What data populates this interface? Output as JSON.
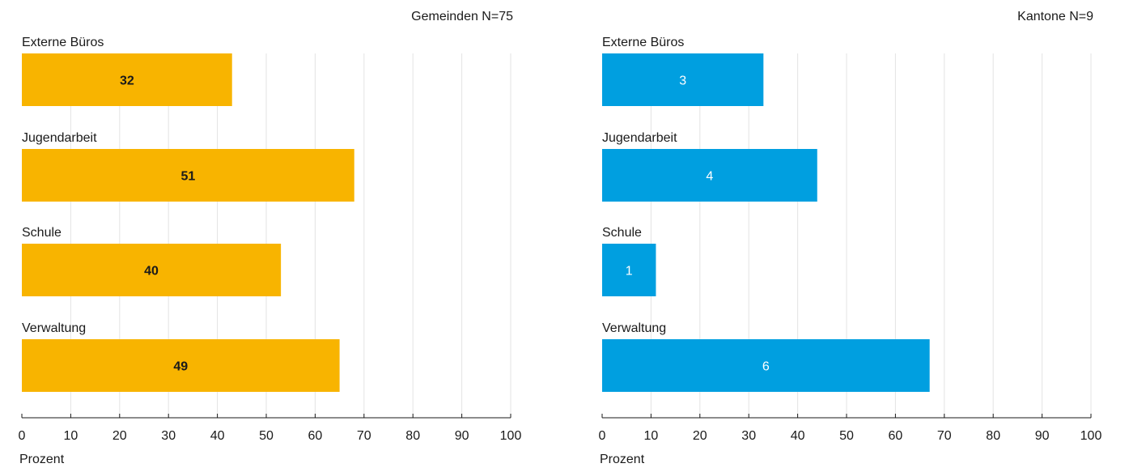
{
  "chart_data": [
    {
      "type": "bar",
      "orientation": "horizontal",
      "panel_label": "Gemeinden N=75",
      "categories": [
        "Externe Büros",
        "Jugendarbeit",
        "Schule",
        "Verwaltung"
      ],
      "values": [
        43,
        68,
        53,
        65
      ],
      "data_labels": [
        "32",
        "51",
        "40",
        "49"
      ],
      "xlabel": "Prozent",
      "ylabel": "",
      "xlim": [
        0,
        100
      ],
      "xticks": [
        "0",
        "10",
        "20",
        "30",
        "40",
        "50",
        "60",
        "70",
        "80",
        "90",
        "100"
      ],
      "grid": true,
      "bar_color": "#F8B400",
      "label_color": "#1a1a1a"
    },
    {
      "type": "bar",
      "orientation": "horizontal",
      "panel_label": "Kantone N=9",
      "categories": [
        "Externe Büros",
        "Jugendarbeit",
        "Schule",
        "Verwaltung"
      ],
      "values": [
        33,
        44,
        11,
        67
      ],
      "data_labels": [
        "3",
        "4",
        "1",
        "6"
      ],
      "xlabel": "Prozent",
      "ylabel": "",
      "xlim": [
        0,
        100
      ],
      "xticks": [
        "0",
        "10",
        "20",
        "30",
        "40",
        "50",
        "60",
        "70",
        "80",
        "90",
        "100"
      ],
      "grid": true,
      "bar_color": "#009FE0",
      "label_color": "#ffffff"
    }
  ]
}
